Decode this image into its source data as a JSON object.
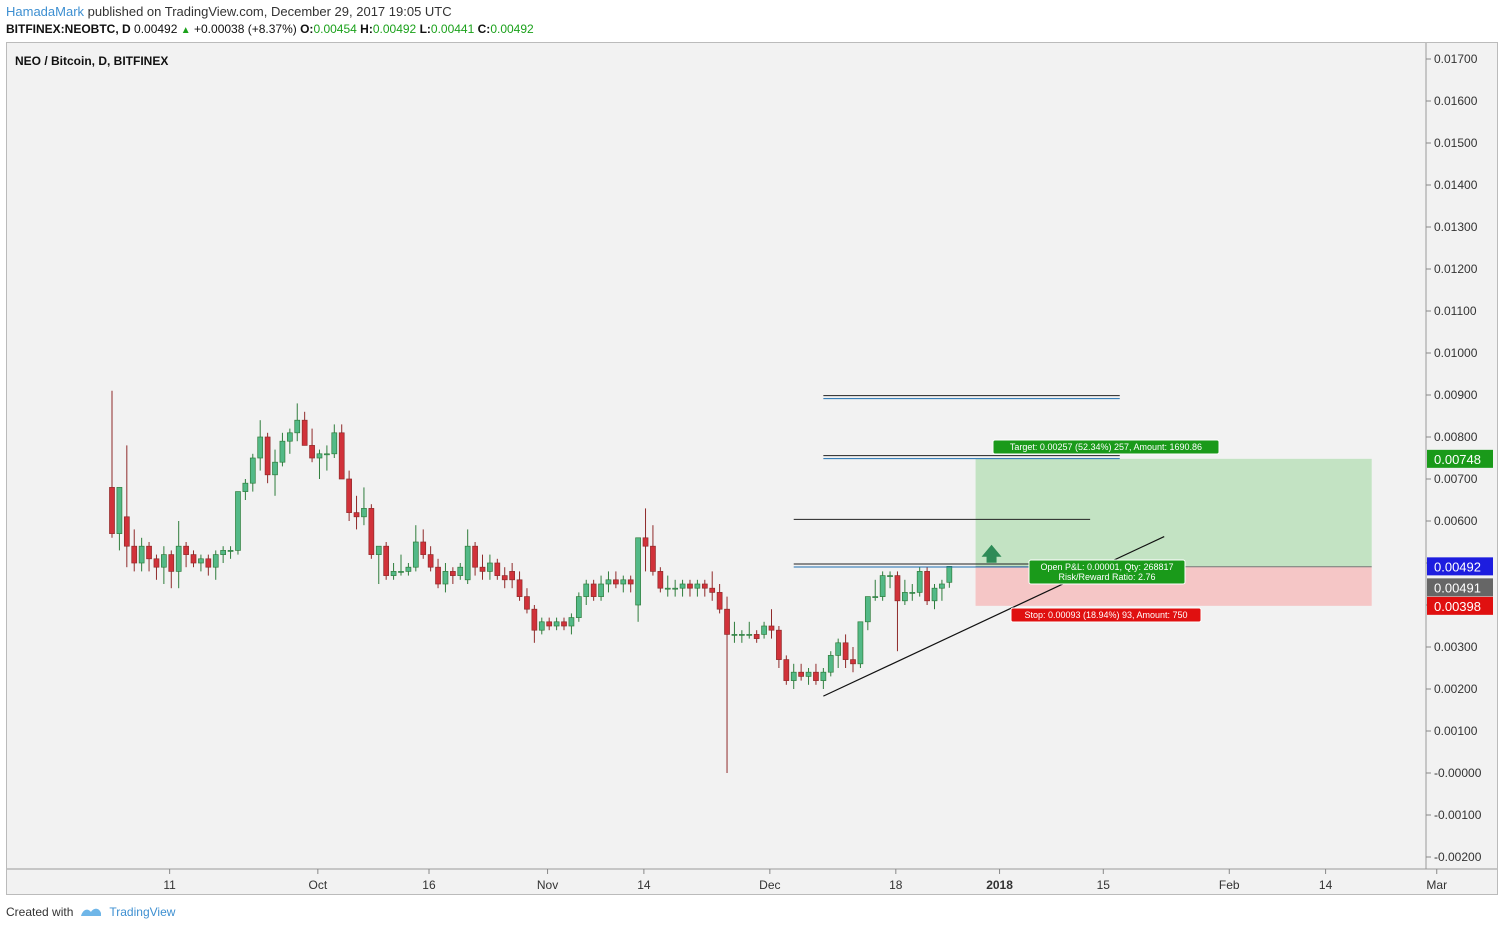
{
  "header": {
    "author": "HamadaMark",
    "published_text": "published on TradingView.com, December 29, 2017 19:05 UTC",
    "symbol": "BITFINEX:NEOBTC, D",
    "last": "0.00492",
    "change": "+0.00038 (+8.37%)",
    "open_label": "O:",
    "open": "0.00454",
    "high_label": "H:",
    "high": "0.00492",
    "low_label": "L:",
    "low": "0.00441",
    "close_label": "C:",
    "close": "0.00492"
  },
  "chart_data": {
    "type": "candlestick",
    "title": "NEO / Bitcoin, D, BITFINEX",
    "y_ticks": [
      "0.01700",
      "0.01600",
      "0.01500",
      "0.01400",
      "0.01300",
      "0.01200",
      "0.01100",
      "0.01000",
      "0.00900",
      "0.00800",
      "0.00700",
      "0.00600",
      "0.00500",
      "0.00400",
      "0.00300",
      "0.00200",
      "0.00100",
      "-0.00000",
      "-0.00100",
      "-0.00200"
    ],
    "ylim": [
      -0.0023,
      0.0177
    ],
    "x_ticks": [
      {
        "label": "11",
        "date": "2017-09-11",
        "bold": false
      },
      {
        "label": "Oct",
        "date": "2017-10-01",
        "bold": false
      },
      {
        "label": "16",
        "date": "2017-10-16",
        "bold": false
      },
      {
        "label": "Nov",
        "date": "2017-11-01",
        "bold": false
      },
      {
        "label": "14",
        "date": "2017-11-14",
        "bold": false
      },
      {
        "label": "Dec",
        "date": "2017-12-01",
        "bold": false
      },
      {
        "label": "18",
        "date": "2017-12-18",
        "bold": false
      },
      {
        "label": "2018",
        "date": "2018-01-01",
        "bold": true
      },
      {
        "label": "15",
        "date": "2018-01-15",
        "bold": false
      },
      {
        "label": "Feb",
        "date": "2018-02-01",
        "bold": false
      },
      {
        "label": "14",
        "date": "2018-02-14",
        "bold": false
      },
      {
        "label": "Mar",
        "date": "2018-03-01",
        "bold": false
      }
    ],
    "first_candle_date": "2017-09-07",
    "candles": [
      [
        0.0068,
        0.0091,
        0.0056,
        0.0057
      ],
      [
        0.0057,
        0.0068,
        0.0053,
        0.0068
      ],
      [
        0.0061,
        0.0078,
        0.0049,
        0.0054
      ],
      [
        0.0054,
        0.0058,
        0.0048,
        0.005
      ],
      [
        0.005,
        0.0056,
        0.0048,
        0.0054
      ],
      [
        0.0054,
        0.0055,
        0.0048,
        0.0051
      ],
      [
        0.0051,
        0.0052,
        0.0046,
        0.0049
      ],
      [
        0.0049,
        0.0054,
        0.0045,
        0.0052
      ],
      [
        0.0052,
        0.0053,
        0.0044,
        0.0048
      ],
      [
        0.0048,
        0.006,
        0.0044,
        0.0054
      ],
      [
        0.0054,
        0.0055,
        0.0049,
        0.0052
      ],
      [
        0.0052,
        0.0053,
        0.0049,
        0.005
      ],
      [
        0.005,
        0.0052,
        0.0048,
        0.0051
      ],
      [
        0.0051,
        0.0052,
        0.0047,
        0.0049
      ],
      [
        0.0049,
        0.0053,
        0.0046,
        0.0052
      ],
      [
        0.0052,
        0.0054,
        0.005,
        0.0053
      ],
      [
        0.0053,
        0.0054,
        0.0051,
        0.0053
      ],
      [
        0.0053,
        0.0067,
        0.0052,
        0.0067
      ],
      [
        0.0067,
        0.007,
        0.0065,
        0.0069
      ],
      [
        0.0069,
        0.0076,
        0.0067,
        0.0075
      ],
      [
        0.0075,
        0.0084,
        0.0072,
        0.008
      ],
      [
        0.008,
        0.0081,
        0.0069,
        0.0071
      ],
      [
        0.0071,
        0.0077,
        0.0066,
        0.0074
      ],
      [
        0.0074,
        0.0081,
        0.0073,
        0.0079
      ],
      [
        0.0079,
        0.0082,
        0.0076,
        0.0081
      ],
      [
        0.0081,
        0.0088,
        0.0079,
        0.0084
      ],
      [
        0.0084,
        0.0086,
        0.0078,
        0.0078
      ],
      [
        0.0078,
        0.0082,
        0.0074,
        0.0075
      ],
      [
        0.0075,
        0.0077,
        0.007,
        0.0076
      ],
      [
        0.0076,
        0.0078,
        0.0072,
        0.0076
      ],
      [
        0.0076,
        0.0083,
        0.0075,
        0.0081
      ],
      [
        0.0081,
        0.0083,
        0.007,
        0.007
      ],
      [
        0.007,
        0.0072,
        0.006,
        0.0062
      ],
      [
        0.0062,
        0.0066,
        0.0058,
        0.0061
      ],
      [
        0.0061,
        0.0068,
        0.0059,
        0.0063
      ],
      [
        0.0063,
        0.0064,
        0.0051,
        0.0052
      ],
      [
        0.0052,
        0.0054,
        0.0045,
        0.0054
      ],
      [
        0.0054,
        0.0055,
        0.0046,
        0.0047
      ],
      [
        0.0047,
        0.005,
        0.0046,
        0.0048
      ],
      [
        0.0048,
        0.0052,
        0.0047,
        0.0048
      ],
      [
        0.0048,
        0.005,
        0.0047,
        0.0049
      ],
      [
        0.0049,
        0.0059,
        0.0048,
        0.0055
      ],
      [
        0.0055,
        0.0058,
        0.0051,
        0.0052
      ],
      [
        0.0052,
        0.0054,
        0.0048,
        0.0049
      ],
      [
        0.0049,
        0.0051,
        0.0044,
        0.0045
      ],
      [
        0.0045,
        0.005,
        0.0043,
        0.0048
      ],
      [
        0.0048,
        0.0049,
        0.0045,
        0.0047
      ],
      [
        0.0047,
        0.005,
        0.0046,
        0.0049
      ],
      [
        0.0046,
        0.0058,
        0.0045,
        0.0054
      ],
      [
        0.0054,
        0.0055,
        0.0047,
        0.0049
      ],
      [
        0.0049,
        0.0052,
        0.0046,
        0.0048
      ],
      [
        0.0048,
        0.0052,
        0.0046,
        0.005
      ],
      [
        0.005,
        0.0051,
        0.0046,
        0.0047
      ],
      [
        0.0047,
        0.0049,
        0.0044,
        0.0046
      ],
      [
        0.0048,
        0.005,
        0.0044,
        0.0046
      ],
      [
        0.0046,
        0.0048,
        0.0041,
        0.0042
      ],
      [
        0.0042,
        0.0044,
        0.0038,
        0.0039
      ],
      [
        0.0039,
        0.004,
        0.0031,
        0.0034
      ],
      [
        0.0034,
        0.0037,
        0.0033,
        0.0036
      ],
      [
        0.0036,
        0.0037,
        0.0034,
        0.0035
      ],
      [
        0.0035,
        0.0037,
        0.0034,
        0.0036
      ],
      [
        0.0036,
        0.0037,
        0.0034,
        0.0035
      ],
      [
        0.0035,
        0.0038,
        0.0033,
        0.0037
      ],
      [
        0.0037,
        0.0043,
        0.0036,
        0.0042
      ],
      [
        0.0042,
        0.0046,
        0.004,
        0.0045
      ],
      [
        0.0045,
        0.0046,
        0.0041,
        0.0042
      ],
      [
        0.0042,
        0.0047,
        0.0041,
        0.0045
      ],
      [
        0.0045,
        0.0048,
        0.0043,
        0.0046
      ],
      [
        0.0046,
        0.0048,
        0.0044,
        0.0045
      ],
      [
        0.0045,
        0.0047,
        0.0043,
        0.0046
      ],
      [
        0.0046,
        0.0047,
        0.0043,
        0.0045
      ],
      [
        0.004,
        0.0056,
        0.0036,
        0.0056
      ],
      [
        0.0056,
        0.0063,
        0.0048,
        0.0054
      ],
      [
        0.0054,
        0.0059,
        0.0047,
        0.0048
      ],
      [
        0.0048,
        0.0049,
        0.0043,
        0.0044
      ],
      [
        0.0044,
        0.0047,
        0.0042,
        0.0044
      ],
      [
        0.0044,
        0.0046,
        0.0042,
        0.0044
      ],
      [
        0.0044,
        0.0046,
        0.0042,
        0.0045
      ],
      [
        0.0045,
        0.0046,
        0.0042,
        0.0044
      ],
      [
        0.0044,
        0.0046,
        0.0042,
        0.0045
      ],
      [
        0.0045,
        0.0046,
        0.0042,
        0.0044
      ],
      [
        0.0044,
        0.0048,
        0.0041,
        0.0043
      ],
      [
        0.0043,
        0.0045,
        0.0038,
        0.0039
      ],
      [
        0.0039,
        0.0042,
        0.0,
        0.0033
      ],
      [
        0.0033,
        0.0036,
        0.0031,
        0.0033
      ],
      [
        0.0033,
        0.0034,
        0.0031,
        0.0033
      ],
      [
        0.0033,
        0.0036,
        0.0032,
        0.0033
      ],
      [
        0.0033,
        0.0034,
        0.0031,
        0.0032
      ],
      [
        0.0033,
        0.0036,
        0.0032,
        0.0035
      ],
      [
        0.0035,
        0.0039,
        0.0032,
        0.0034
      ],
      [
        0.0034,
        0.0035,
        0.0025,
        0.0027
      ],
      [
        0.0027,
        0.0028,
        0.0021,
        0.0022
      ],
      [
        0.0022,
        0.0026,
        0.002,
        0.0024
      ],
      [
        0.0024,
        0.0026,
        0.0022,
        0.0023
      ],
      [
        0.0023,
        0.0025,
        0.0021,
        0.0024
      ],
      [
        0.0024,
        0.0026,
        0.0021,
        0.0022
      ],
      [
        0.0022,
        0.0025,
        0.002,
        0.0024
      ],
      [
        0.0024,
        0.0029,
        0.0023,
        0.0028
      ],
      [
        0.0028,
        0.0032,
        0.0025,
        0.0031
      ],
      [
        0.0031,
        0.0033,
        0.0025,
        0.0027
      ],
      [
        0.0027,
        0.003,
        0.0024,
        0.0026
      ],
      [
        0.0026,
        0.0036,
        0.0025,
        0.0036
      ],
      [
        0.0036,
        0.0042,
        0.0034,
        0.0042
      ],
      [
        0.0042,
        0.0046,
        0.0041,
        0.0042
      ],
      [
        0.0042,
        0.0048,
        0.0041,
        0.0047
      ],
      [
        0.0047,
        0.0048,
        0.0044,
        0.0047
      ],
      [
        0.0047,
        0.0048,
        0.0029,
        0.0041
      ],
      [
        0.0041,
        0.0046,
        0.004,
        0.0043
      ],
      [
        0.0043,
        0.0045,
        0.0041,
        0.0043
      ],
      [
        0.0043,
        0.0049,
        0.0042,
        0.0048
      ],
      [
        0.0048,
        0.0049,
        0.004,
        0.0041
      ],
      [
        0.0041,
        0.0045,
        0.0039,
        0.0044
      ],
      [
        0.0044,
        0.0046,
        0.0041,
        0.0045
      ],
      [
        0.00454,
        0.00492,
        0.00441,
        0.00492
      ]
    ],
    "colors": {
      "up": "#53b987",
      "down": "#eb4d5c",
      "up_fill": "#3fa55c",
      "down_fill": "#d1323a"
    },
    "price_tags": [
      {
        "value": "0.00748",
        "price": 0.00748,
        "color": "#1a9a1a"
      },
      {
        "value": "0.00492",
        "price": 0.00492,
        "color": "#1d1ddf"
      },
      {
        "value": "0.00491",
        "price": 0.00491,
        "color": "#666666"
      },
      {
        "value": "0.00398",
        "price": 0.00398,
        "color": "#e01010"
      }
    ],
    "position": {
      "entry": 0.00491,
      "target": 0.00748,
      "stop": 0.00398,
      "start_date": "2018-01-01",
      "end_date": "2018-02-24",
      "target_label": "Target: 0.00257 (52.34%) 257, Amount: 1690.86",
      "pnl_label": "Open P&L: 0.00001, Qty: 268817",
      "rr_label": "Risk/Reward Ratio: 2.76",
      "stop_label": "Stop: 0.00093 (18.94%) 93, Amount: 750"
    },
    "horizontal_lines": [
      {
        "price": 0.00895,
        "start_date": "2017-12-12",
        "end_date": "2018-01-21",
        "double": true
      },
      {
        "price": 0.00752,
        "start_date": "2017-12-12",
        "end_date": "2018-01-21",
        "double": true
      },
      {
        "price": 0.00604,
        "start_date": "2017-12-08",
        "end_date": "2018-01-17",
        "double": false
      },
      {
        "price": 0.00494,
        "start_date": "2017-12-08",
        "end_date": "2018-01-13",
        "double": true
      }
    ],
    "trend_line": {
      "start_date": "2017-12-12",
      "start_price": 0.00183,
      "end_date": "2018-01-27",
      "end_price": 0.00563
    }
  },
  "footer": {
    "created_with": "Created with",
    "brand": "TradingView"
  }
}
